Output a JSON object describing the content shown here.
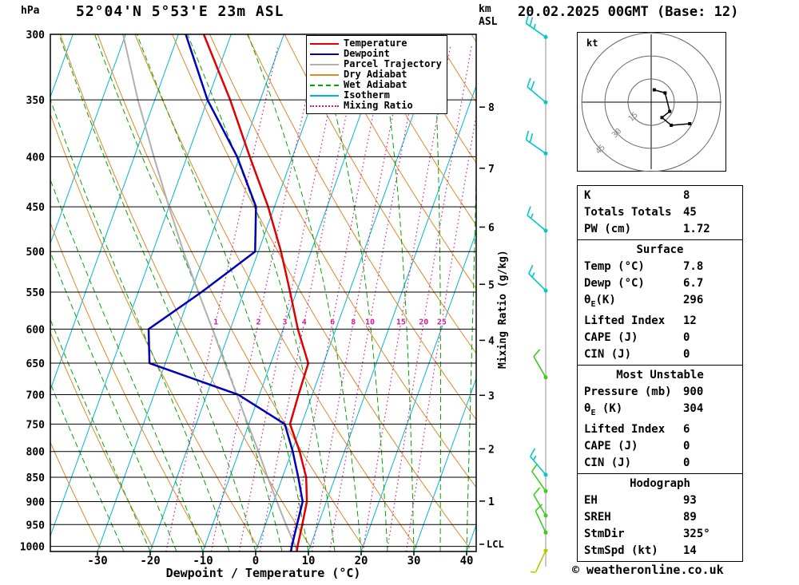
{
  "header": {
    "pressure_unit": "hPa",
    "station": "52°04'N 5°53'E 23m ASL",
    "datetime": "20.02.2025 00GMT (Base: 12)",
    "copyright": "© weatheronline.co.uk"
  },
  "axes": {
    "xlabel": "Dewpoint / Temperature (°C)",
    "right_label": "Mixing Ratio (g/kg)",
    "km_label_line1": "km",
    "km_label_line2": "ASL",
    "lcl_label": "LCL"
  },
  "legend": [
    {
      "label": "Temperature",
      "color": "#e00000",
      "style": "solid"
    },
    {
      "label": "Dewpoint",
      "color": "#0000bb",
      "style": "solid"
    },
    {
      "label": "Parcel Trajectory",
      "color": "#b0b0b0",
      "style": "solid"
    },
    {
      "label": "Dry Adiabat",
      "color": "#e08828",
      "style": "solid"
    },
    {
      "label": "Wet Adiabat",
      "color": "#00a800",
      "style": "dashed"
    },
    {
      "label": "Isotherm",
      "color": "#00b4d8",
      "style": "solid"
    },
    {
      "label": "Mixing Ratio",
      "color": "#d81890",
      "style": "dotted"
    }
  ],
  "chart_data": {
    "type": "skewt_log_p_sounding",
    "title": "52°04'N 5°53'E 23m ASL",
    "datetime": "20.02.2025 00GMT (Base: 12)",
    "pressure_axis": {
      "unit": "hPa",
      "ticks": [
        300,
        350,
        400,
        450,
        500,
        550,
        600,
        650,
        700,
        750,
        800,
        850,
        900,
        950,
        1000
      ],
      "range": [
        300,
        1012
      ]
    },
    "temp_axis": {
      "unit": "°C",
      "ticks": [
        -30,
        -20,
        -10,
        0,
        10,
        20,
        30,
        40
      ]
    },
    "km_axis": {
      "unit": "km ASL",
      "ticks": [
        1,
        2,
        3,
        4,
        5,
        6,
        7,
        8
      ],
      "tick_pressures": [
        899,
        795,
        701,
        616,
        540,
        472,
        411,
        356
      ],
      "lcl_pressure": 995
    },
    "skew": 0.36,
    "sounding": {
      "pressure": [
        1012,
        1000,
        950,
        900,
        850,
        800,
        750,
        700,
        650,
        600,
        550,
        500,
        450,
        400,
        350,
        300
      ],
      "temperature": [
        7.8,
        7.6,
        7.0,
        6.3,
        4.5,
        1.5,
        -2.2,
        -2.6,
        -2.9,
        -7.2,
        -11.2,
        -15.7,
        -21.2,
        -28.1,
        -35.7,
        -45.2
      ],
      "dewpoint": [
        6.7,
        6.5,
        6.0,
        5.5,
        3.0,
        0.2,
        -3.2,
        -14.0,
        -33.0,
        -35.5,
        -28.0,
        -20.6,
        -23.5,
        -30.5,
        -40.0,
        -48.6
      ],
      "parcel": [
        7.8,
        7.2,
        3.9,
        0.6,
        -2.8,
        -6.3,
        -10.2,
        -14.3,
        -18.7,
        -23.4,
        -28.6,
        -34.2,
        -40.0,
        -46.3,
        -53.2,
        -60.5
      ]
    },
    "mixing_ratio_lines": [
      1,
      2,
      3,
      4,
      6,
      8,
      10,
      15,
      20,
      25
    ],
    "mixing_label_pressure": 590,
    "winds": [
      {
        "pressure": 302,
        "speed_kt": 25,
        "dir_deg": 305,
        "color": "#00c8c8"
      },
      {
        "pressure": 352,
        "speed_kt": 20,
        "dir_deg": 310,
        "color": "#00c8c8"
      },
      {
        "pressure": 397,
        "speed_kt": 20,
        "dir_deg": 305,
        "color": "#00c8c8"
      },
      {
        "pressure": 476,
        "speed_kt": 15,
        "dir_deg": 310,
        "color": "#00c8c8"
      },
      {
        "pressure": 548,
        "speed_kt": 15,
        "dir_deg": 315,
        "color": "#00c8c8"
      },
      {
        "pressure": 672,
        "speed_kt": 10,
        "dir_deg": 330,
        "color": "#3ecc1e"
      },
      {
        "pressure": 845,
        "speed_kt": 15,
        "dir_deg": 320,
        "color": "#00c8c8"
      },
      {
        "pressure": 878,
        "speed_kt": 10,
        "dir_deg": 325,
        "color": "#3ecc1e"
      },
      {
        "pressure": 930,
        "speed_kt": 10,
        "dir_deg": 330,
        "color": "#3ecc1e"
      },
      {
        "pressure": 968,
        "speed_kt": 10,
        "dir_deg": 335,
        "color": "#3ecc1e"
      },
      {
        "pressure": 1010,
        "speed_kt": 5,
        "dir_deg": 205,
        "color": "#b8c800"
      }
    ],
    "hodograph": {
      "unit_label": "kt",
      "rings": [
        15,
        30,
        45
      ],
      "trace_uv": [
        [
          2,
          8
        ],
        [
          9,
          6
        ],
        [
          12,
          -6
        ],
        [
          7,
          -10
        ],
        [
          13,
          -15
        ],
        [
          25,
          -14
        ]
      ]
    },
    "colors": {
      "temperature": "#e00000",
      "dewpoint": "#0000bb",
      "parcel": "#b0b0b0",
      "dry_adiabat": "#e08828",
      "wet_adiabat": "#00a800",
      "isotherm": "#00b4d8",
      "mixing_ratio": "#d81890",
      "barb_line": "#909090",
      "grid": "#000000"
    }
  },
  "panel": {
    "indices": {
      "rows": [
        {
          "label": "K",
          "value": "8"
        },
        {
          "label": "Totals Totals",
          "value": "45"
        },
        {
          "label": "PW (cm)",
          "value": "1.72"
        }
      ]
    },
    "surface": {
      "title": "Surface",
      "rows": [
        {
          "label": "Temp (°C)",
          "value": "7.8"
        },
        {
          "label": "Dewp (°C)",
          "value": "6.7"
        },
        {
          "label_pre": "θ",
          "label_sub": "E",
          "label_post": "(K)",
          "value": "296"
        },
        {
          "label": "Lifted Index",
          "value": "12"
        },
        {
          "label": "CAPE (J)",
          "value": "0"
        },
        {
          "label": "CIN (J)",
          "value": "0"
        }
      ]
    },
    "most_unstable": {
      "title": "Most Unstable",
      "rows": [
        {
          "label": "Pressure (mb)",
          "value": "900"
        },
        {
          "label_pre": "θ",
          "label_sub": "E",
          "label_post": " (K)",
          "value": "304"
        },
        {
          "label": "Lifted Index",
          "value": "6"
        },
        {
          "label": "CAPE (J)",
          "value": "0"
        },
        {
          "label": "CIN (J)",
          "value": "0"
        }
      ]
    },
    "hodograph_section": {
      "title": "Hodograph",
      "rows": [
        {
          "label": "EH",
          "value": "93"
        },
        {
          "label": "SREH",
          "value": "89"
        },
        {
          "label": "StmDir",
          "value": "325°"
        },
        {
          "label": "StmSpd (kt)",
          "value": "14"
        }
      ]
    }
  }
}
